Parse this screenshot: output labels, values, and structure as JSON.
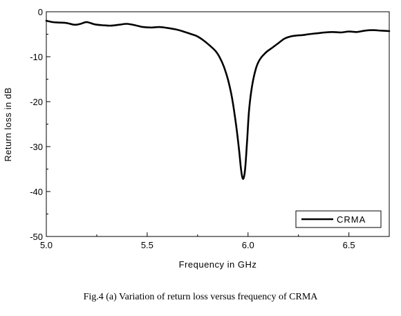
{
  "chart_data": {
    "type": "line",
    "xlabel": "Frequency in GHz",
    "ylabel": "Return loss in  dB",
    "xlim": [
      5.0,
      6.7
    ],
    "ylim": [
      -50,
      0
    ],
    "x_ticks": [
      5.0,
      5.5,
      6.0,
      6.5
    ],
    "x_tick_labels": [
      "5.0",
      "5.5",
      "6.0",
      "6.5"
    ],
    "y_ticks": [
      0,
      -10,
      -20,
      -30,
      -40,
      -50
    ],
    "y_tick_labels": [
      "0",
      "-10",
      "-20",
      "-30",
      "-40",
      "-50"
    ],
    "grid": false,
    "legend_position": "bottom-right",
    "series": [
      {
        "name": "CRMA",
        "color": "#000000",
        "x": [
          5.0,
          5.03,
          5.06,
          5.1,
          5.14,
          5.17,
          5.2,
          5.24,
          5.28,
          5.32,
          5.36,
          5.4,
          5.44,
          5.48,
          5.52,
          5.56,
          5.6,
          5.64,
          5.68,
          5.72,
          5.75,
          5.78,
          5.81,
          5.84,
          5.86,
          5.88,
          5.9,
          5.92,
          5.94,
          5.955,
          5.965,
          5.975,
          5.985,
          5.995,
          6.005,
          6.02,
          6.04,
          6.06,
          6.09,
          6.12,
          6.15,
          6.18,
          6.21,
          6.24,
          6.27,
          6.3,
          6.34,
          6.38,
          6.42,
          6.46,
          6.5,
          6.54,
          6.58,
          6.62,
          6.66,
          6.7
        ],
        "y": [
          -2.0,
          -2.3,
          -2.4,
          -2.5,
          -2.9,
          -2.7,
          -2.3,
          -2.8,
          -3.0,
          -3.1,
          -2.9,
          -2.7,
          -3.0,
          -3.4,
          -3.5,
          -3.4,
          -3.6,
          -3.9,
          -4.4,
          -5.0,
          -5.5,
          -6.4,
          -7.5,
          -8.8,
          -10.2,
          -12.2,
          -15.0,
          -19.0,
          -25.0,
          -30.5,
          -35.0,
          -37.2,
          -35.2,
          -29.0,
          -22.0,
          -16.5,
          -12.5,
          -10.5,
          -9.0,
          -8.0,
          -7.0,
          -6.0,
          -5.5,
          -5.3,
          -5.2,
          -5.0,
          -4.8,
          -4.6,
          -4.5,
          -4.6,
          -4.4,
          -4.5,
          -4.2,
          -4.1,
          -4.2,
          -4.3
        ]
      }
    ]
  },
  "caption": "Fig.4 (a) Variation of return loss versus frequency of CRMA"
}
